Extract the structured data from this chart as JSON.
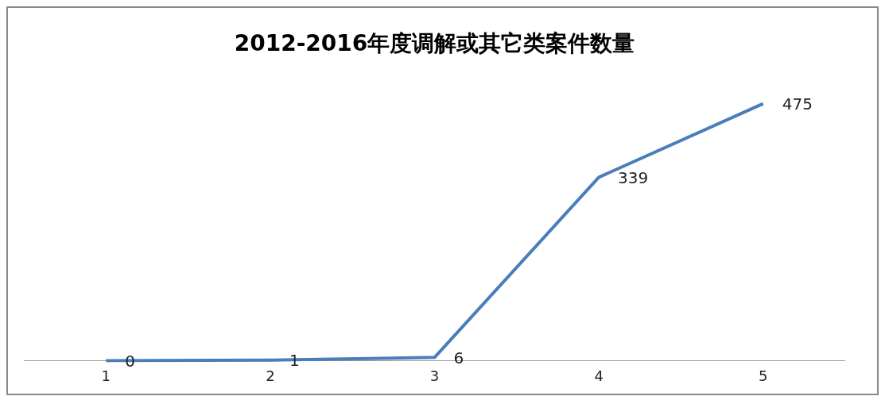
{
  "chart_data": {
    "type": "line",
    "title": "2012-2016年度调解或其它类案件数量",
    "categories": [
      "1",
      "2",
      "3",
      "4",
      "5"
    ],
    "series": [
      {
        "color": "#4a7ebb",
        "values": [
          0,
          1,
          6,
          339,
          475
        ]
      }
    ],
    "data_labels": true,
    "marker": "none",
    "line_style": "solid",
    "grid": false,
    "legend": false
  }
}
